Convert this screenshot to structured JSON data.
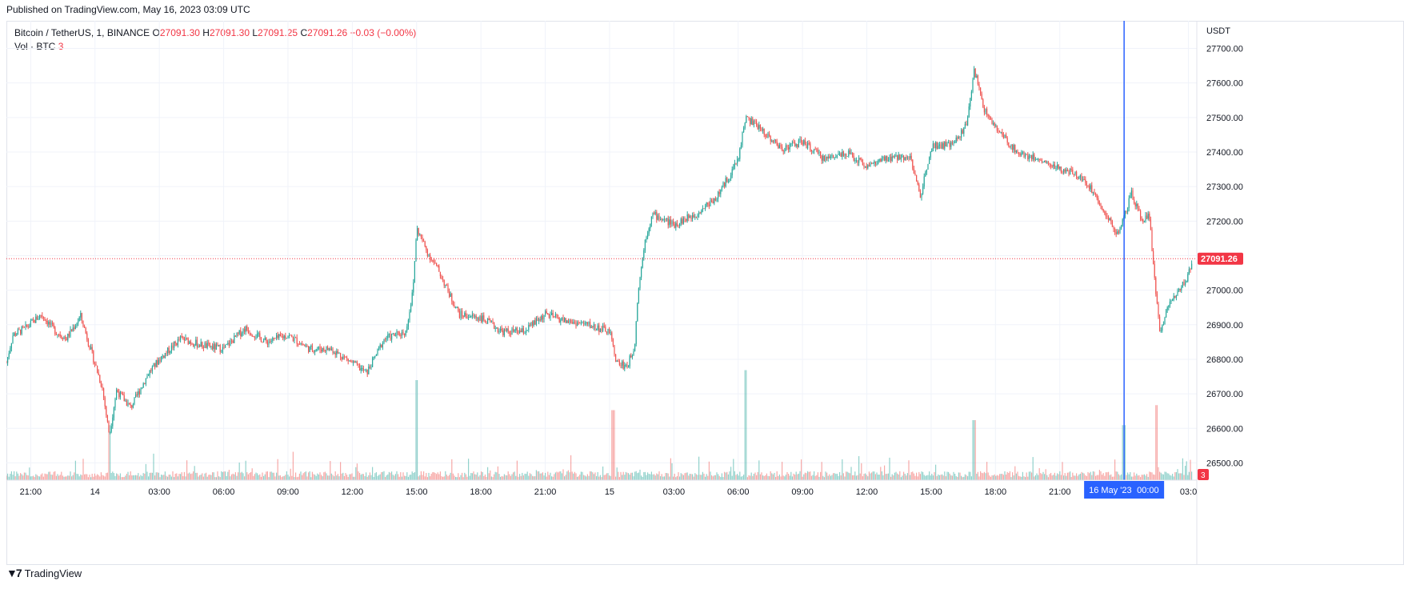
{
  "published": "Published on TradingView.com, May 16, 2023 03:09 UTC",
  "legend": {
    "symbol": "Bitcoin / TetherUS, 1, BINANCE",
    "open_label": "O",
    "open": "27091.30",
    "high_label": "H",
    "high": "27091.30",
    "low_label": "L",
    "low": "27091.25",
    "close_label": "C",
    "close": "27091.26",
    "change": "−0.03 (−0.00%)",
    "vol_label": "Vol · BTC",
    "vol_value": "3"
  },
  "axis": {
    "currency": "USDT",
    "last_price": "27091.26",
    "last_volume": "3",
    "crosshair_date": "16 May '23",
    "crosshair_time": "00:00"
  },
  "brand": "TradingView",
  "colors": {
    "up": "#26a69a",
    "down": "#ef5350",
    "crosshair": "#2962ff",
    "last_price": "#f23645"
  },
  "chart_data": {
    "type": "candlestick",
    "interval": "1 minute",
    "y_ticks": [
      26500,
      26600,
      26700,
      26800,
      26900,
      27000,
      27100,
      27200,
      27300,
      27400,
      27500,
      27600,
      27700
    ],
    "y_tick_labels": [
      "26500.00",
      "26600.00",
      "26700.00",
      "26800.00",
      "26900.00",
      "27000.00",
      "27100.00",
      "27200.00",
      "27300.00",
      "27400.00",
      "27500.00",
      "27600.00",
      "27700.00"
    ],
    "ylim": [
      26450,
      27780
    ],
    "x_range": [
      "May 13 19:52",
      "May 16 03:10"
    ],
    "x_ticks": [
      {
        "label": "21:00",
        "t": "2023-05-13T21:00"
      },
      {
        "label": "14",
        "t": "2023-05-14T00:00"
      },
      {
        "label": "03:00",
        "t": "2023-05-14T03:00"
      },
      {
        "label": "06:00",
        "t": "2023-05-14T06:00"
      },
      {
        "label": "09:00",
        "t": "2023-05-14T09:00"
      },
      {
        "label": "12:00",
        "t": "2023-05-14T12:00"
      },
      {
        "label": "15:00",
        "t": "2023-05-14T15:00"
      },
      {
        "label": "18:00",
        "t": "2023-05-14T18:00"
      },
      {
        "label": "21:00",
        "t": "2023-05-14T21:00"
      },
      {
        "label": "15",
        "t": "2023-05-15T00:00"
      },
      {
        "label": "03:00",
        "t": "2023-05-15T03:00"
      },
      {
        "label": "06:00",
        "t": "2023-05-15T06:00"
      },
      {
        "label": "09:00",
        "t": "2023-05-15T09:00"
      },
      {
        "label": "12:00",
        "t": "2023-05-15T12:00"
      },
      {
        "label": "15:00",
        "t": "2023-05-15T15:00"
      },
      {
        "label": "18:00",
        "t": "2023-05-15T18:00"
      },
      {
        "label": "21:00",
        "t": "2023-05-15T21:00"
      },
      {
        "label": "03:0",
        "t": "2023-05-16T03:00"
      }
    ],
    "last_price": 27091.26,
    "crosshair_t": "2023-05-16T00:00",
    "price_path": [
      {
        "t": "2023-05-13T19:52",
        "p": 26790
      },
      {
        "t": "2023-05-13T20:10",
        "p": 26870
      },
      {
        "t": "2023-05-13T20:45",
        "p": 26890
      },
      {
        "t": "2023-05-13T21:30",
        "p": 26930
      },
      {
        "t": "2023-05-13T22:10",
        "p": 26880
      },
      {
        "t": "2023-05-13T22:40",
        "p": 26860
      },
      {
        "t": "2023-05-13T23:20",
        "p": 26925
      },
      {
        "t": "2023-05-13T23:50",
        "p": 26820
      },
      {
        "t": "2023-05-14T00:20",
        "p": 26720
      },
      {
        "t": "2023-05-14T00:40",
        "p": 26580
      },
      {
        "t": "2023-05-14T01:00",
        "p": 26710
      },
      {
        "t": "2023-05-14T01:40",
        "p": 26660
      },
      {
        "t": "2023-05-14T02:30",
        "p": 26760
      },
      {
        "t": "2023-05-14T03:00",
        "p": 26800
      },
      {
        "t": "2023-05-14T04:00",
        "p": 26860
      },
      {
        "t": "2023-05-14T05:00",
        "p": 26840
      },
      {
        "t": "2023-05-14T06:00",
        "p": 26830
      },
      {
        "t": "2023-05-14T07:00",
        "p": 26890
      },
      {
        "t": "2023-05-14T08:00",
        "p": 26850
      },
      {
        "t": "2023-05-14T09:00",
        "p": 26870
      },
      {
        "t": "2023-05-14T10:00",
        "p": 26830
      },
      {
        "t": "2023-05-14T11:00",
        "p": 26830
      },
      {
        "t": "2023-05-14T12:00",
        "p": 26790
      },
      {
        "t": "2023-05-14T12:40",
        "p": 26760
      },
      {
        "t": "2023-05-14T13:30",
        "p": 26860
      },
      {
        "t": "2023-05-14T14:30",
        "p": 26880
      },
      {
        "t": "2023-05-14T14:50",
        "p": 27000
      },
      {
        "t": "2023-05-14T15:00",
        "p": 27180
      },
      {
        "t": "2023-05-14T15:30",
        "p": 27110
      },
      {
        "t": "2023-05-14T16:00",
        "p": 27060
      },
      {
        "t": "2023-05-14T16:40",
        "p": 26970
      },
      {
        "t": "2023-05-14T17:00",
        "p": 26930
      },
      {
        "t": "2023-05-14T18:00",
        "p": 26920
      },
      {
        "t": "2023-05-14T19:00",
        "p": 26880
      },
      {
        "t": "2023-05-14T20:00",
        "p": 26880
      },
      {
        "t": "2023-05-14T21:00",
        "p": 26930
      },
      {
        "t": "2023-05-14T22:00",
        "p": 26910
      },
      {
        "t": "2023-05-14T23:00",
        "p": 26900
      },
      {
        "t": "2023-05-15T00:00",
        "p": 26880
      },
      {
        "t": "2023-05-15T00:20",
        "p": 26790
      },
      {
        "t": "2023-05-15T00:50",
        "p": 26780
      },
      {
        "t": "2023-05-15T01:10",
        "p": 26840
      },
      {
        "t": "2023-05-15T01:20",
        "p": 27000
      },
      {
        "t": "2023-05-15T01:40",
        "p": 27150
      },
      {
        "t": "2023-05-15T02:00",
        "p": 27220
      },
      {
        "t": "2023-05-15T03:00",
        "p": 27190
      },
      {
        "t": "2023-05-15T04:00",
        "p": 27220
      },
      {
        "t": "2023-05-15T05:00",
        "p": 27270
      },
      {
        "t": "2023-05-15T05:40",
        "p": 27340
      },
      {
        "t": "2023-05-15T06:00",
        "p": 27380
      },
      {
        "t": "2023-05-15T06:20",
        "p": 27500
      },
      {
        "t": "2023-05-15T07:00",
        "p": 27470
      },
      {
        "t": "2023-05-15T08:00",
        "p": 27410
      },
      {
        "t": "2023-05-15T09:00",
        "p": 27430
      },
      {
        "t": "2023-05-15T10:00",
        "p": 27380
      },
      {
        "t": "2023-05-15T11:00",
        "p": 27400
      },
      {
        "t": "2023-05-15T12:00",
        "p": 27360
      },
      {
        "t": "2023-05-15T13:00",
        "p": 27380
      },
      {
        "t": "2023-05-15T14:00",
        "p": 27390
      },
      {
        "t": "2023-05-15T14:30",
        "p": 27270
      },
      {
        "t": "2023-05-15T15:00",
        "p": 27420
      },
      {
        "t": "2023-05-15T16:00",
        "p": 27420
      },
      {
        "t": "2023-05-15T16:40",
        "p": 27480
      },
      {
        "t": "2023-05-15T17:00",
        "p": 27640
      },
      {
        "t": "2023-05-15T17:30",
        "p": 27520
      },
      {
        "t": "2023-05-15T18:00",
        "p": 27470
      },
      {
        "t": "2023-05-15T19:00",
        "p": 27400
      },
      {
        "t": "2023-05-15T20:00",
        "p": 27380
      },
      {
        "t": "2023-05-15T21:00",
        "p": 27350
      },
      {
        "t": "2023-05-15T22:00",
        "p": 27330
      },
      {
        "t": "2023-05-15T22:30",
        "p": 27290
      },
      {
        "t": "2023-05-15T23:00",
        "p": 27240
      },
      {
        "t": "2023-05-15T23:40",
        "p": 27160
      },
      {
        "t": "2023-05-16T00:00",
        "p": 27210
      },
      {
        "t": "2023-05-16T00:20",
        "p": 27280
      },
      {
        "t": "2023-05-16T00:50",
        "p": 27200
      },
      {
        "t": "2023-05-16T01:10",
        "p": 27220
      },
      {
        "t": "2023-05-16T01:30",
        "p": 26980
      },
      {
        "t": "2023-05-16T01:40",
        "p": 26870
      },
      {
        "t": "2023-05-16T02:00",
        "p": 26950
      },
      {
        "t": "2023-05-16T02:30",
        "p": 27000
      },
      {
        "t": "2023-05-16T03:00",
        "p": 27040
      },
      {
        "t": "2023-05-16T03:10",
        "p": 27091
      }
    ],
    "volume_spikes": [
      {
        "t": "2023-05-14T00:40",
        "v": 55
      },
      {
        "t": "2023-05-14T15:00",
        "v": 100
      },
      {
        "t": "2023-05-15T00:10",
        "v": 70
      },
      {
        "t": "2023-05-15T06:20",
        "v": 110
      },
      {
        "t": "2023-05-15T17:00",
        "v": 60
      },
      {
        "t": "2023-05-16T00:00",
        "v": 55
      },
      {
        "t": "2023-05-16T01:30",
        "v": 75
      }
    ]
  }
}
